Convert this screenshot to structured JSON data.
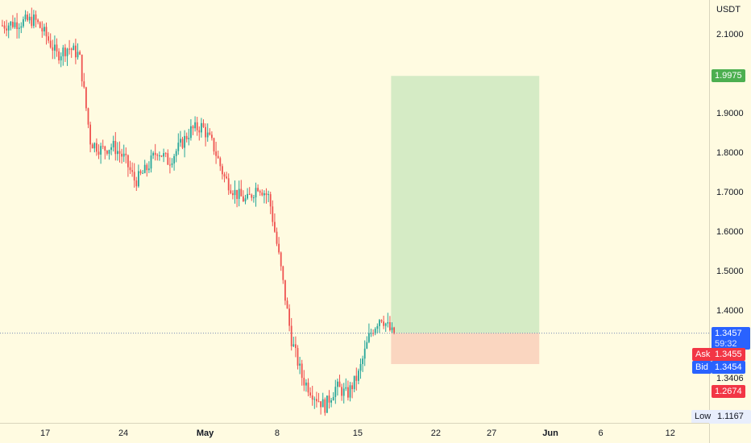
{
  "axis": {
    "currency": "USDT",
    "price_ticks": [
      "2.1000",
      "1.9000",
      "1.8000",
      "1.7000",
      "1.6000",
      "1.5000",
      "1.4000"
    ],
    "date_ticks": [
      "17",
      "24",
      "May",
      "8",
      "15",
      "22",
      "27",
      "Jun",
      "6",
      "12"
    ]
  },
  "tags": {
    "target": "1.9975",
    "current_price": "1.3457",
    "countdown": "59:32",
    "ask_label": "Ask",
    "ask_value": "1.3455",
    "bid_label": "Bid",
    "bid_value": "1.3454",
    "level_price": "1.3406",
    "stop": "1.2674",
    "low_label": "Low",
    "low_value": "1.1167"
  },
  "colors": {
    "up": "#26a69a",
    "down": "#ef5350",
    "profit_zone": "#d5ebc5",
    "loss_zone": "#fad6c0",
    "target_tag": "#4caf50",
    "stop_tag": "#f23645",
    "price_tag": "#2962ff"
  },
  "chart_data": {
    "type": "line",
    "symbol_quote": "USDT",
    "y_axis": {
      "scale": "linear",
      "range": [
        1.1,
        2.16
      ],
      "ticks": [
        2.1,
        1.9,
        1.8,
        1.7,
        1.6,
        1.5,
        1.4
      ]
    },
    "x_axis": {
      "labels": [
        "17",
        "24",
        "May",
        "8",
        "15",
        "22",
        "27",
        "Jun",
        "6",
        "12"
      ]
    },
    "series": [
      {
        "points": [
          [
            "Apr 10",
            2.05
          ],
          [
            "Apr 12",
            2.12
          ],
          [
            "Apr 14",
            2.13
          ],
          [
            "Apr 16",
            2.14
          ],
          [
            "Apr 17",
            2.1
          ],
          [
            "Apr 18",
            2.05
          ],
          [
            "Apr 19",
            2.07
          ],
          [
            "Apr 20",
            2.05
          ],
          [
            "Apr 21",
            1.83
          ],
          [
            "Apr 22",
            1.81
          ],
          [
            "Apr 23",
            1.82
          ],
          [
            "Apr 24",
            1.79
          ],
          [
            "Apr 25",
            1.73
          ],
          [
            "Apr 26",
            1.76
          ],
          [
            "Apr 27",
            1.81
          ],
          [
            "Apr 28",
            1.78
          ],
          [
            "Apr 29",
            1.82
          ],
          [
            "Apr 30",
            1.86
          ],
          [
            "May 1",
            1.87
          ],
          [
            "May 2",
            1.82
          ],
          [
            "May 3",
            1.74
          ],
          [
            "May 4",
            1.7
          ],
          [
            "May 5",
            1.68
          ],
          [
            "May 6",
            1.72
          ],
          [
            "May 7",
            1.69
          ],
          [
            "May 8",
            1.52
          ],
          [
            "May 9",
            1.33
          ],
          [
            "May 10",
            1.23
          ],
          [
            "May 11",
            1.19
          ],
          [
            "May 12",
            1.16
          ],
          [
            "May 13",
            1.21
          ],
          [
            "May 14",
            1.19
          ],
          [
            "May 15",
            1.24
          ],
          [
            "May 16",
            1.34
          ],
          [
            "May 17",
            1.39
          ],
          [
            "May 18",
            1.3457
          ]
        ]
      }
    ],
    "position": {
      "type": "long",
      "entry": 1.3457,
      "target": 1.9975,
      "stop": 1.2674,
      "start": "May 18",
      "end": "Jun 1"
    },
    "current_price": 1.3457,
    "ask": 1.3455,
    "bid": 1.3454,
    "level": 1.3406,
    "low": 1.1167,
    "grid": false
  }
}
